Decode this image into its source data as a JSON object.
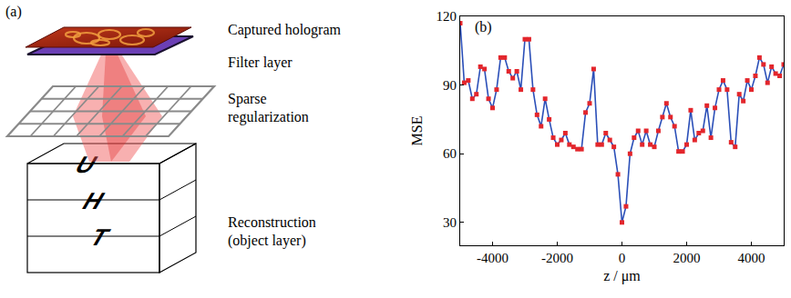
{
  "diagram": {
    "panel": "(a)",
    "object_letters": [
      "U",
      "H",
      "T"
    ],
    "layers": [
      {
        "label": [
          "Captured hologram"
        ]
      },
      {
        "label": [
          "Filter layer"
        ]
      },
      {
        "label": [
          "Sparse",
          "regularization"
        ]
      },
      {
        "label": [
          "Reconstruction",
          "(object layer)"
        ]
      }
    ]
  },
  "chart_data": {
    "type": "line",
    "annotations": [
      "(b)"
    ],
    "xlabel": "z / μm",
    "ylabel": "MSE",
    "x": [
      -5000,
      -4875,
      -4750,
      -4625,
      -4500,
      -4375,
      -4250,
      -4125,
      -4000,
      -3875,
      -3750,
      -3625,
      -3500,
      -3375,
      -3250,
      -3125,
      -3000,
      -2875,
      -2750,
      -2625,
      -2500,
      -2375,
      -2250,
      -2125,
      -2000,
      -1875,
      -1750,
      -1625,
      -1500,
      -1375,
      -1250,
      -1125,
      -1000,
      -875,
      -750,
      -625,
      -500,
      -375,
      -250,
      -125,
      0,
      125,
      250,
      375,
      500,
      625,
      750,
      875,
      1000,
      1125,
      1250,
      1375,
      1500,
      1625,
      1750,
      1875,
      2000,
      2125,
      2250,
      2375,
      2500,
      2625,
      2750,
      2875,
      3000,
      3125,
      3250,
      3375,
      3500,
      3625,
      3750,
      3875,
      4000,
      4125,
      4250,
      4375,
      4500,
      4625,
      4750,
      4875,
      5000
    ],
    "values": [
      117,
      91,
      92,
      84,
      86,
      98,
      97,
      84,
      80,
      88,
      102,
      102,
      96,
      93,
      96,
      88,
      110,
      110,
      88,
      77,
      72,
      84,
      75,
      67,
      64,
      66,
      69,
      64,
      63,
      62,
      62,
      78,
      82,
      97,
      64,
      64,
      69,
      66,
      63,
      51,
      30,
      37,
      60,
      67,
      70,
      64,
      70,
      64,
      63,
      70,
      76,
      82,
      76,
      72,
      61,
      61,
      64,
      79,
      66,
      69,
      70,
      81,
      67,
      80,
      88,
      92,
      88,
      65,
      63,
      86,
      83,
      92,
      88,
      94,
      102,
      99,
      91,
      98,
      95,
      94,
      99
    ],
    "color": "#2b4fb8",
    "marker": "square",
    "line_style": "solid",
    "xlim": [
      -5000,
      5000
    ],
    "xticks": [
      -4000,
      -2000,
      0,
      2000,
      4000
    ],
    "ylim": [
      20,
      120
    ],
    "yticks": [
      30,
      60,
      90,
      120
    ],
    "grid": false
  }
}
